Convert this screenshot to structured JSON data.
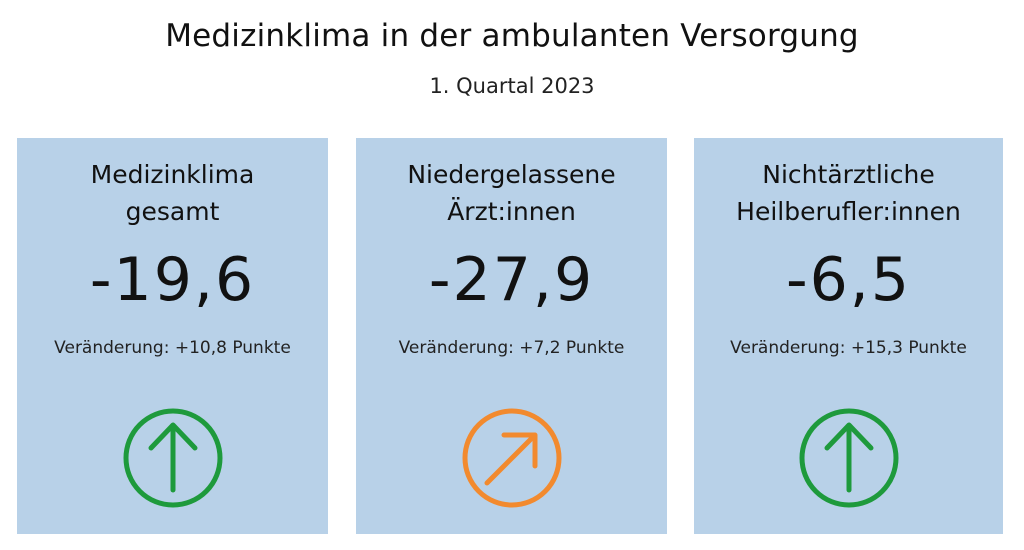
{
  "header": {
    "title": "Medizinklima in der ambulanten Versorgung",
    "subtitle": "1. Quartal 2023"
  },
  "cards": [
    {
      "title_line1": "Medizinklima",
      "title_line2": "gesamt",
      "value": "-19,6",
      "change": "Veränderung: +10,8 Punkte",
      "icon": "arrow-up-circle-icon",
      "icon_color": "#1e9a3c"
    },
    {
      "title_line1": "Niedergelassene",
      "title_line2": "Ärzt:innen",
      "value": "-27,9",
      "change": "Veränderung: +7,2 Punkte",
      "icon": "arrow-up-right-circle-icon",
      "icon_color": "#f28a2e"
    },
    {
      "title_line1": "Nichtärztliche",
      "title_line2": "Heilberufler:innen",
      "value": "-6,5",
      "change": "Veränderung: +15,3 Punkte",
      "icon": "arrow-up-circle-icon",
      "icon_color": "#1e9a3c"
    }
  ],
  "colors": {
    "card_background": "#b8d1e8",
    "positive": "#1e9a3c",
    "moderate": "#f28a2e"
  }
}
